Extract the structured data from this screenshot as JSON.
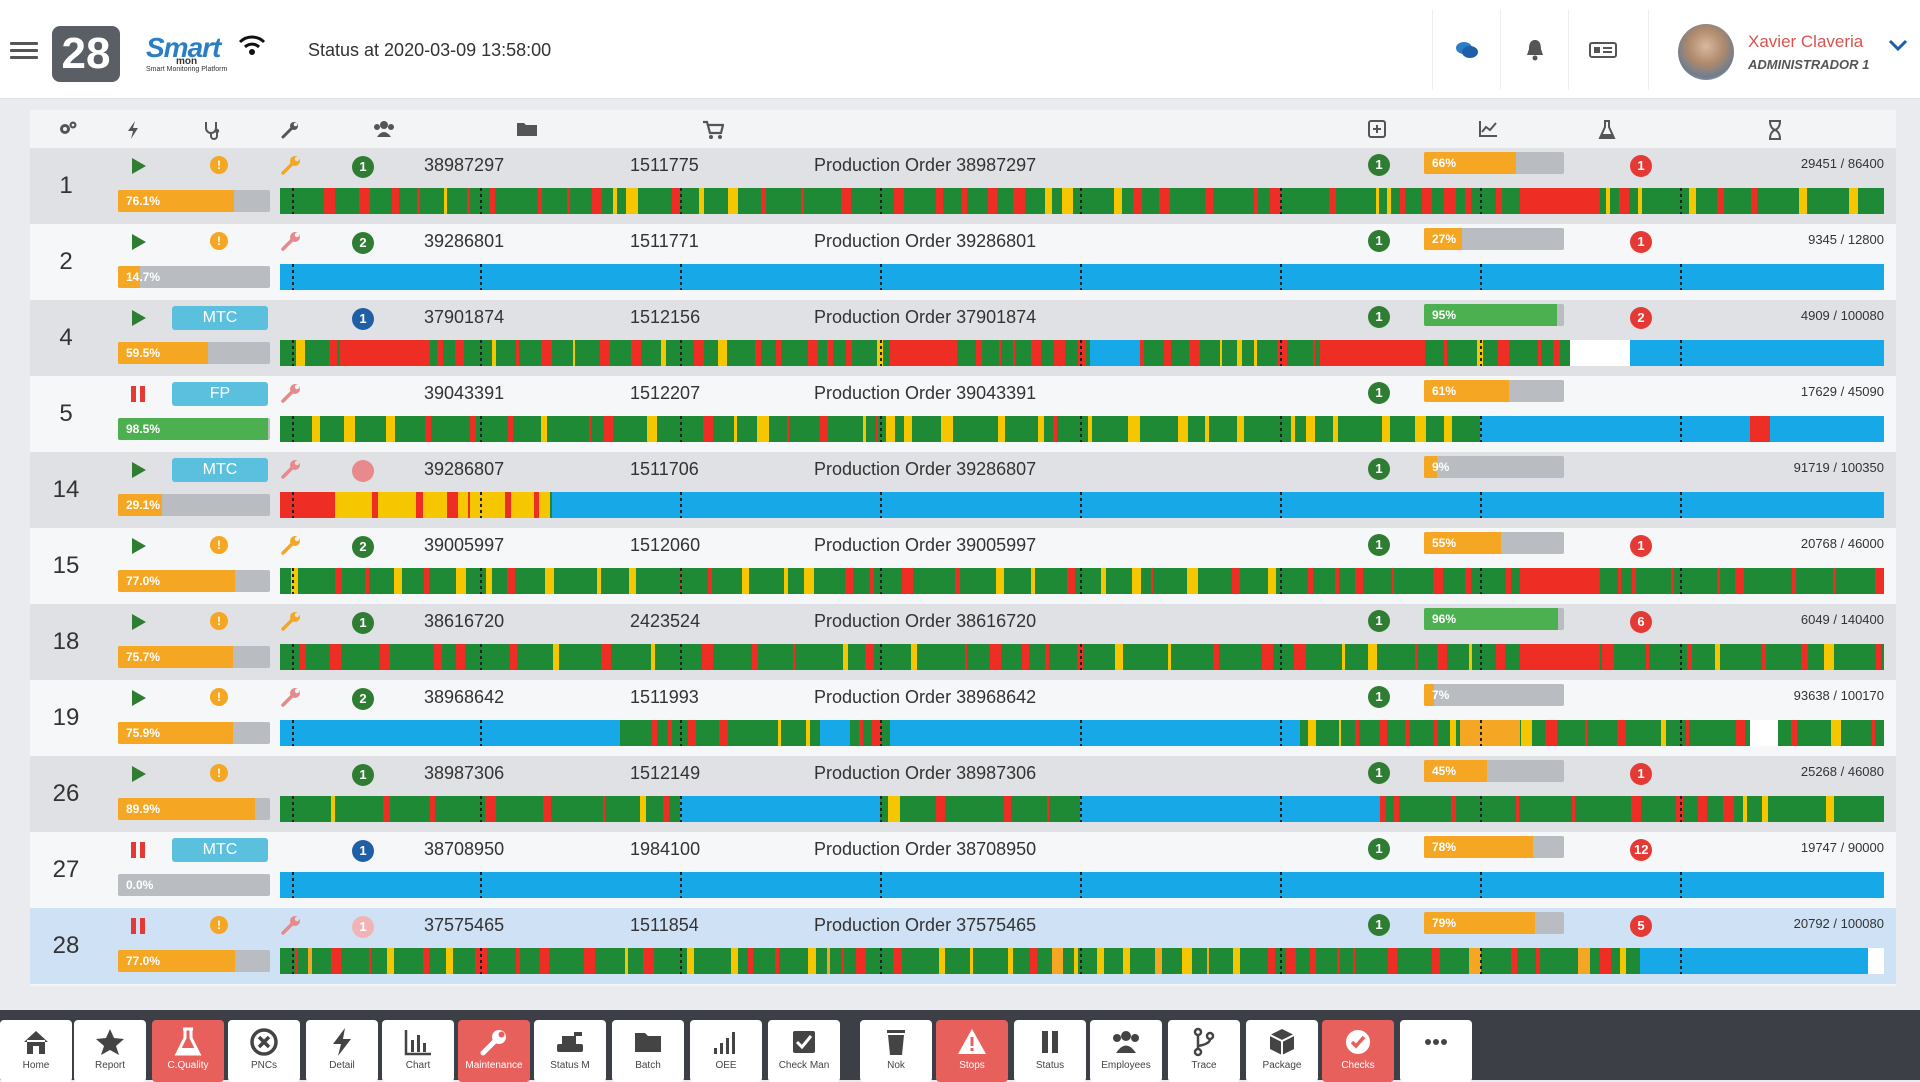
{
  "header": {
    "machine_number": "28",
    "logo_primary": "Smart",
    "logo_secondary": "mon",
    "logo_tagline": "Smart Monitoring Platform",
    "status": "Status at 2020-03-09 13:58:00",
    "user_name": "Xavier Claveria",
    "user_role": "ADMINISTRADOR 1",
    "icons": [
      "chat-icon",
      "bell-icon",
      "id-card-icon",
      "chevron-down-icon"
    ]
  },
  "columns": [
    "settings-icon",
    "bolt-icon",
    "stethoscope-icon",
    "wrench-icon",
    "team-icon",
    "folder-icon",
    "cart-icon",
    "plus-square-icon",
    "line-chart-icon",
    "flask-icon",
    "hourglass-icon"
  ],
  "rows": [
    {
      "num": "1",
      "state": "play",
      "pill": "",
      "warn": true,
      "wrench": "orange",
      "circle": {
        "text": "1",
        "type": "green"
      },
      "order": "38987297",
      "product": "1511775",
      "description": "Production Order 38987297",
      "pct": "76.1%",
      "pct_value": 76.1,
      "oee": "1",
      "perf": "66%",
      "perf_value": 66,
      "quality": "1",
      "qty": "29451 / 86400",
      "timeline": "mixed"
    },
    {
      "num": "2",
      "state": "play",
      "pill": "",
      "warn": true,
      "wrench": "pink",
      "circle": {
        "text": "2",
        "type": "green"
      },
      "order": "39286801",
      "product": "1511771",
      "description": "Production Order 39286801",
      "pct": "14.7%",
      "pct_value": 14.7,
      "oee": "1",
      "perf": "27%",
      "perf_value": 27,
      "quality": "1",
      "qty": "9345 / 12800",
      "timeline": "blue"
    },
    {
      "num": "4",
      "state": "play",
      "pill": "MTC",
      "warn": false,
      "wrench": "",
      "circle": {
        "text": "1",
        "type": "blue"
      },
      "dot": "red",
      "order": "37901874",
      "product": "1512156",
      "description": "Production Order 37901874",
      "pct": "59.5%",
      "pct_value": 59.5,
      "oee": "1",
      "perf": "95%",
      "perf_value": 95,
      "quality": "2",
      "qty": "4909 / 100080",
      "timeline": "mixed-red"
    },
    {
      "num": "5",
      "state": "pause",
      "pill": "FP",
      "warn": false,
      "wrench": "pink",
      "circle": null,
      "order": "39043391",
      "product": "1512207",
      "description": "Production Order 39043391",
      "pct": "98.5%",
      "pct_value": 98.5,
      "oee": "1",
      "perf": "61%",
      "perf_value": 61,
      "quality": "",
      "qty": "17629 / 45090",
      "timeline": "green-blue"
    },
    {
      "num": "14",
      "state": "play",
      "pill": "MTC",
      "warn": false,
      "wrench": "pink",
      "circle": null,
      "dot": "red",
      "order": "39286807",
      "product": "1511706",
      "description": "Production Order 39286807",
      "pct": "29.1%",
      "pct_value": 29.1,
      "oee": "1",
      "perf": "9%",
      "perf_value": 9,
      "quality": "",
      "qty": "91719 / 100350",
      "timeline": "red-yellow-blue"
    },
    {
      "num": "15",
      "state": "play",
      "pill": "",
      "warn": true,
      "wrench": "orange",
      "circle": {
        "text": "2",
        "type": "green"
      },
      "order": "39005997",
      "product": "1512060",
      "description": "Production Order 39005997",
      "pct": "77.0%",
      "pct_value": 77.0,
      "oee": "1",
      "perf": "55%",
      "perf_value": 55,
      "quality": "1",
      "qty": "20768 / 46000",
      "timeline": "mixed"
    },
    {
      "num": "18",
      "state": "play",
      "pill": "",
      "warn": true,
      "wrench": "orange",
      "circle": {
        "text": "1",
        "type": "green"
      },
      "order": "38616720",
      "product": "2423524",
      "description": "Production Order 38616720",
      "pct": "75.7%",
      "pct_value": 75.7,
      "oee": "1",
      "perf": "96%",
      "perf_value": 96,
      "quality": "6",
      "qty": "6049 / 140400",
      "timeline": "mixed"
    },
    {
      "num": "19",
      "state": "play",
      "pill": "",
      "warn": true,
      "wrench": "pink",
      "circle": {
        "text": "2",
        "type": "green"
      },
      "order": "38968642",
      "product": "1511993",
      "description": "Production Order 38968642",
      "pct": "75.9%",
      "pct_value": 75.9,
      "oee": "1",
      "perf": "7%",
      "perf_value": 7,
      "quality": "",
      "qty": "93638 / 100170",
      "timeline": "blue-mixed"
    },
    {
      "num": "26",
      "state": "play",
      "pill": "",
      "warn": true,
      "wrench": "",
      "circle": {
        "text": "1",
        "type": "green"
      },
      "order": "38987306",
      "product": "1512149",
      "description": "Production Order 38987306",
      "pct": "89.9%",
      "pct_value": 89.9,
      "oee": "1",
      "perf": "45%",
      "perf_value": 45,
      "quality": "1",
      "qty": "25268 / 46080",
      "timeline": "green-blue-mixed"
    },
    {
      "num": "27",
      "state": "pause",
      "pill": "MTC",
      "warn": false,
      "wrench": "",
      "circle": {
        "text": "1",
        "type": "blue"
      },
      "order": "38708950",
      "product": "1984100",
      "description": "Production Order 38708950",
      "pct": "0.0%",
      "pct_value": 0,
      "oee": "1",
      "perf": "78%",
      "perf_value": 78,
      "quality": "12",
      "qty": "19747 / 90000",
      "timeline": "blue"
    },
    {
      "num": "28",
      "state": "pause",
      "pill": "",
      "warn": true,
      "wrench": "pink",
      "circle": {
        "text": "1",
        "type": "pink"
      },
      "order": "37575465",
      "product": "1511854",
      "description": "Production Order 37575465",
      "pct": "77.0%",
      "pct_value": 77.0,
      "oee": "1",
      "perf": "79%",
      "perf_value": 79,
      "quality": "5",
      "qty": "20792 / 100080",
      "timeline": "mixed-blue"
    }
  ],
  "toolbar": [
    {
      "label": "Home",
      "icon": "home-icon",
      "active": false
    },
    {
      "label": "Report",
      "icon": "star-icon",
      "active": false
    },
    {
      "label": "C.Quality",
      "icon": "flask-icon",
      "active": true
    },
    {
      "label": "PNCs",
      "icon": "x-circle-icon",
      "active": false
    },
    {
      "label": "Detail",
      "icon": "bolt-icon",
      "active": false
    },
    {
      "label": "Chart",
      "icon": "bar-chart-icon",
      "active": false
    },
    {
      "label": "Maintenance",
      "icon": "wrench-icon",
      "active": true
    },
    {
      "label": "Status M",
      "icon": "machine-icon",
      "active": false
    },
    {
      "label": "Batch",
      "icon": "folder-icon",
      "active": false
    },
    {
      "label": "OEE",
      "icon": "signal-icon",
      "active": false
    },
    {
      "label": "Check Man",
      "icon": "checkbox-icon",
      "active": false
    },
    {
      "label": "Nok",
      "icon": "trash-icon",
      "active": false
    },
    {
      "label": "Stops",
      "icon": "alert-icon",
      "active": true
    },
    {
      "label": "Status",
      "icon": "pause-icon",
      "active": false
    },
    {
      "label": "Employees",
      "icon": "team-icon",
      "active": false
    },
    {
      "label": "Trace",
      "icon": "branch-icon",
      "active": false
    },
    {
      "label": "Package",
      "icon": "box-icon",
      "active": false
    },
    {
      "label": "Checks",
      "icon": "check-circle-icon",
      "active": true
    },
    {
      "label": "",
      "icon": "more-icon",
      "active": false
    }
  ],
  "colors": {
    "green": "#1e8a35",
    "red": "#ee2e24",
    "yellow": "#f6c600",
    "blue": "#17a8e8",
    "orange": "#f5a623"
  }
}
